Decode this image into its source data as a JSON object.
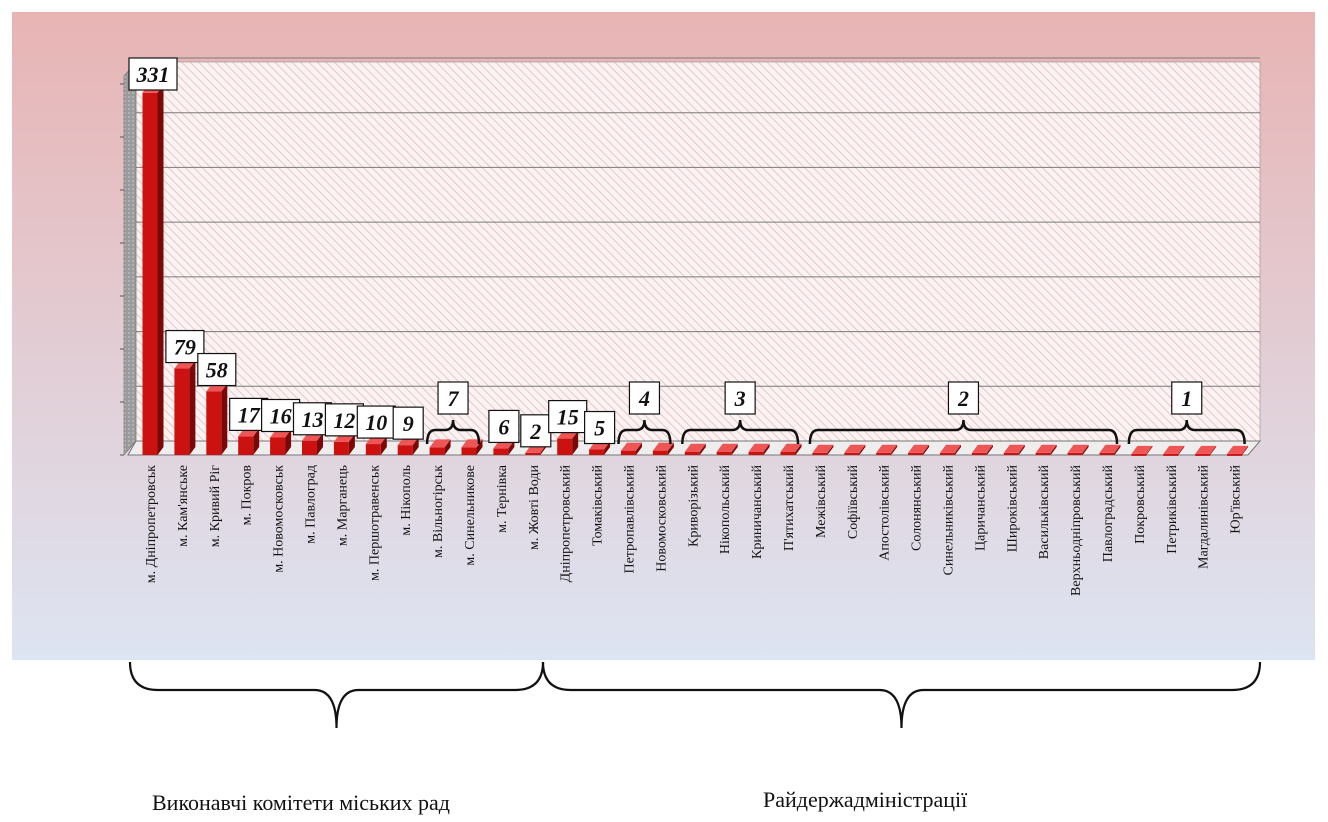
{
  "chart_data": {
    "type": "bar",
    "categories": [
      "м. Дніпропетровськ",
      "м. Кам'янське",
      "м. Кривий Ріг",
      "м. Покров",
      "м. Новомосковськ",
      "м. Павлоград",
      "м. Марганець",
      "м. Першотравенськ",
      "м. Нікополь",
      "м. Вільногірськ",
      "м. Синельникове",
      "м. Тернівка",
      "м. Жовті Води",
      "Дніпропетровський",
      "Томаківський",
      "Петропавлівський",
      "Новомосковський",
      "Криворізький",
      "Нікопольський",
      "Криничанський",
      "П'ятихатський",
      "Межівський",
      "Софіївський",
      "Апостолівський",
      "Солонянський",
      "Синельниківський",
      "Царичанський",
      "Широківський",
      "Васильківський",
      "Верхньодніпровський",
      "Павлоградський",
      "Покровський",
      "Петриківський",
      "Магдалинівський",
      "Юр'ївський"
    ],
    "values": [
      331,
      79,
      58,
      17,
      16,
      13,
      12,
      10,
      9,
      7,
      7,
      6,
      2,
      15,
      5,
      4,
      4,
      3,
      3,
      3,
      3,
      2,
      2,
      2,
      2,
      2,
      2,
      2,
      2,
      2,
      2,
      1,
      1,
      1,
      1
    ],
    "bar_labels": [
      {
        "index": 0,
        "text": "331"
      },
      {
        "index": 1,
        "text": "79"
      },
      {
        "index": 2,
        "text": "58"
      },
      {
        "index": 3,
        "text": "17"
      },
      {
        "index": 4,
        "text": "16"
      },
      {
        "index": 5,
        "text": "13"
      },
      {
        "index": 6,
        "text": "12"
      },
      {
        "index": 7,
        "text": "10"
      },
      {
        "index": 8,
        "text": "9"
      },
      {
        "index": 11,
        "text": "6"
      },
      {
        "index": 12,
        "text": "2"
      },
      {
        "index": 13,
        "text": "15"
      },
      {
        "index": 14,
        "text": "5"
      }
    ],
    "range_labels": [
      {
        "from": 9,
        "to": 10,
        "text": "7"
      },
      {
        "from": 15,
        "to": 16,
        "text": "4"
      },
      {
        "from": 17,
        "to": 20,
        "text": "3"
      },
      {
        "from": 21,
        "to": 30,
        "text": "2"
      },
      {
        "from": 31,
        "to": 34,
        "text": "1"
      }
    ],
    "groups": [
      {
        "label": "Виконавчі комітети міських рад",
        "from": 0,
        "to": 12
      },
      {
        "label": "Райдержадміністрації",
        "from": 13,
        "to": 34
      }
    ],
    "ylim": [
      0,
      350
    ],
    "grid": true,
    "bar_color": "#cc1111",
    "background_top": "#e8b4b4",
    "background_bottom": "#dde4f2"
  }
}
